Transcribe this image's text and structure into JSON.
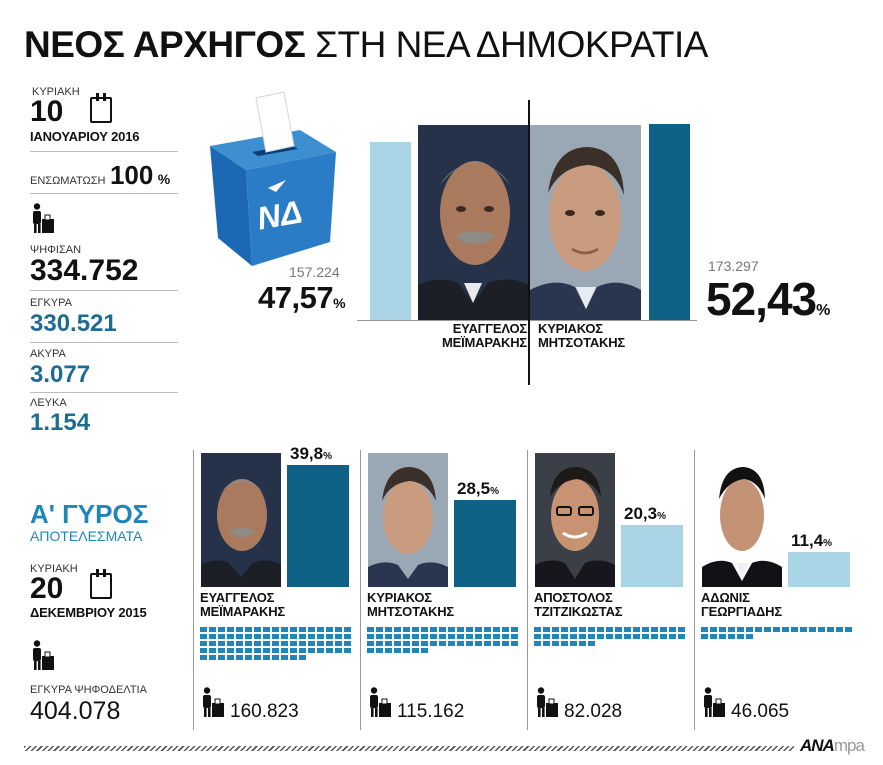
{
  "title": {
    "bold": "ΝΕΟΣ ΑΡΧΗΓΟΣ",
    "normal": "ΣΤΗ ΝΕΑ ΔΗΜΟΚΡΑΤΙΑ"
  },
  "second_round": {
    "weekday": "ΚΥΡΙΑΚΗ",
    "day": "10",
    "month": "ΙΑΝΟΥΑΡΙΟΥ 2016",
    "coverage_label": "ΕΝΣΩΜΑΤΩΣΗ",
    "coverage_value": "100",
    "coverage_unit": "%",
    "voted_label": "ΨΗΦΙΣΑΝ",
    "voted_value": "334.752",
    "valid_label": "ΕΓΚΥΡΑ",
    "valid_value": "330.521",
    "invalid_label": "ΑΚΥΡΑ",
    "invalid_value": "3.077",
    "blank_label": "ΛΕΥΚΑ",
    "blank_value": "1.154"
  },
  "ballot_logo": "ΝΔ",
  "first_round": {
    "title": "Α' ΓΥΡΟΣ",
    "subtitle": "ΑΠΟΤΕΛΕΣΜΑΤΑ",
    "weekday": "ΚΥΡΙΑΚΗ",
    "day": "20",
    "month": "ΔΕΚΕΜΒΡΙΟΥ 2015",
    "valid_ballots_label": "ΕΓΚΥΡΑ ΨΗΦΟΔΕΛΤΙΑ",
    "valid_ballots_value": "404.078"
  },
  "footer": {
    "logo_bold": "ΑΝΑ",
    "logo_light": "mpa"
  },
  "chart_data": [
    {
      "type": "bar",
      "categories": [
        "ΕΥΑΓΓΕΛΟΣ ΜΕΪΜΑΡΑΚΗΣ",
        "ΚΥΡΙΑΚΟΣ ΜΗΤΣΟΤΑΚΗΣ"
      ],
      "series": [
        {
          "values": [
            47.57,
            52.43
          ],
          "labels": [
            "47,57",
            "52,43"
          ],
          "votes": [
            "157.224",
            "173.297"
          ]
        }
      ],
      "candidates": [
        {
          "first": "ΕΥΑΓΓΕΛΟΣ",
          "last": "ΜΕΪΜΑΡΑΚΗΣ",
          "pct": "47,57",
          "votes": "157.224",
          "winner": false
        },
        {
          "first": "ΚΥΡΙΑΚΟΣ",
          "last": "ΜΗΤΣΟΤΑΚΗΣ",
          "pct": "52,43",
          "votes": "173.297",
          "winner": true
        }
      ],
      "unit": "%",
      "ylim": [
        0,
        55
      ],
      "colors": {
        "leader": "#0f6185",
        "other": "#a8d4e6"
      }
    },
    {
      "type": "bar",
      "categories": [
        "ΕΥΑΓΓΕΛΟΣ ΜΕΪΜΑΡΑΚΗΣ",
        "ΚΥΡΙΑΚΟΣ ΜΗΤΣΟΤΑΚΗΣ",
        "ΑΠΟΣΤΟΛΟΣ ΤΖΙΤΖΙΚΩΣΤΑΣ",
        "ΑΔΩΝΙΣ ΓΕΩΡΓΙΑΔΗΣ"
      ],
      "series": [
        {
          "values": [
            39.8,
            28.5,
            20.3,
            11.4
          ],
          "labels": [
            "39,8",
            "28,5",
            "20,3",
            "11,4"
          ],
          "votes": [
            "160.823",
            "115.162",
            "82.028",
            "46.065"
          ]
        }
      ],
      "candidates": [
        {
          "first": "ΕΥΑΓΓΕΛΟΣ",
          "last": "ΜΕΪΜΑΡΑΚΗΣ",
          "pct": "39,8",
          "votes": "160.823",
          "advanced": true
        },
        {
          "first": "ΚΥΡΙΑΚΟΣ",
          "last": "ΜΗΤΣΟΤΑΚΗΣ",
          "pct": "28,5",
          "votes": "115.162",
          "advanced": true
        },
        {
          "first": "ΑΠΟΣΤΟΛΟΣ",
          "last": "ΤΖΙΤΖΙΚΩΣΤΑΣ",
          "pct": "20,3",
          "votes": "82.028",
          "advanced": false
        },
        {
          "first": "ΑΔΩΝΙΣ",
          "last": "ΓΕΩΡΓΙΑΔΗΣ",
          "pct": "11,4",
          "votes": "46.065",
          "advanced": false
        }
      ],
      "unit": "%",
      "ylim": [
        0,
        45
      ],
      "colors": {
        "advanced": "#0f6185",
        "eliminated": "#a8d4e6",
        "stripes": "#1e86b8"
      }
    }
  ]
}
